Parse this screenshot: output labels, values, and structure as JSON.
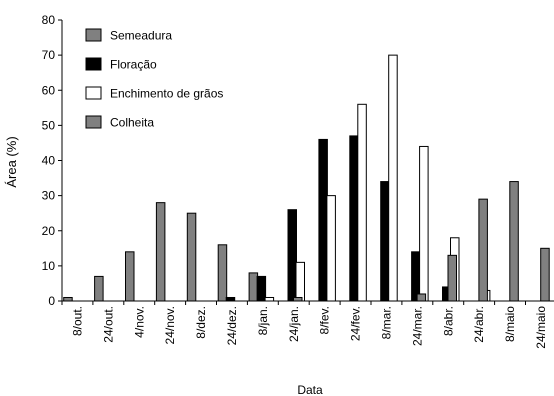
{
  "chart_data": {
    "type": "bar",
    "xlabel": "Data",
    "ylabel": "Área (%)",
    "ylim": [
      0,
      80
    ],
    "yticks": [
      0,
      10,
      20,
      30,
      40,
      50,
      60,
      70,
      80
    ],
    "grid": false,
    "legend_position": "top-left",
    "categories": [
      "8/out.",
      "24/out.",
      "4/nov.",
      "24/nov.",
      "8/dez.",
      "24/dez.",
      "8/jan.",
      "24/jan.",
      "8/fev.",
      "24/fev.",
      "8/mar.",
      "24/mar.",
      "8/abr.",
      "24/abr.",
      "8/maio",
      "24/maio"
    ],
    "series": [
      {
        "name": "Semeadura",
        "color": "#808080",
        "values": [
          1,
          7,
          14,
          28,
          25,
          16,
          8,
          0,
          0,
          0,
          0,
          0,
          0,
          0,
          0,
          0
        ]
      },
      {
        "name": "Floração",
        "color": "#000000",
        "values": [
          0,
          0,
          0,
          0,
          0,
          1,
          7,
          26,
          46,
          47,
          34,
          14,
          4,
          0,
          0,
          0
        ]
      },
      {
        "name": "Enchimento de grãos",
        "color": "#ffffff",
        "values": [
          0,
          0,
          0,
          0,
          0,
          0,
          1,
          11,
          30,
          56,
          70,
          44,
          18,
          3,
          0,
          0
        ]
      },
      {
        "name": "Colheita",
        "color": "#808080",
        "values": [
          0,
          0,
          0,
          0,
          0,
          0,
          0,
          1,
          0,
          0,
          0,
          2,
          13,
          29,
          34,
          15
        ]
      }
    ]
  }
}
